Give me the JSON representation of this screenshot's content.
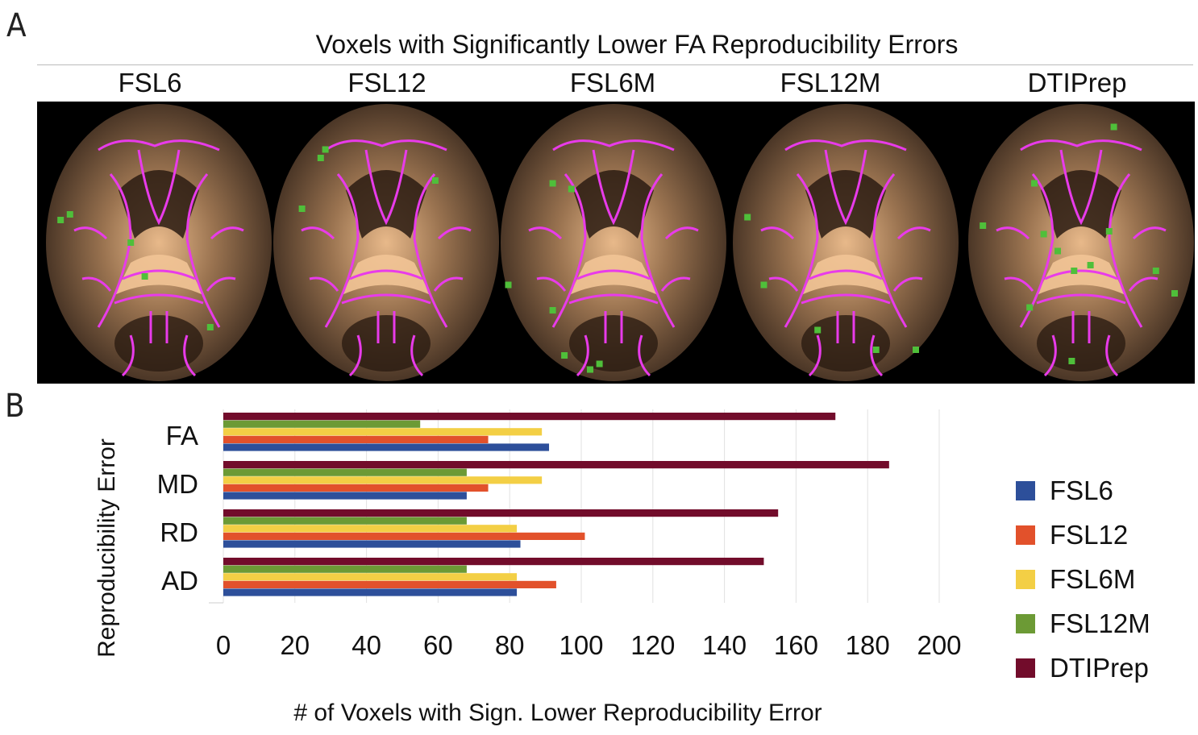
{
  "panel_a": {
    "label": "A",
    "title": "Voxels with Significantly Lower FA Reproducibility Errors",
    "columns": [
      "FSL6",
      "FSL12",
      "FSL6M",
      "FSL12M",
      "DTIPrep"
    ],
    "green_spots": [
      [
        [
          0.08,
          0.42
        ],
        [
          0.38,
          0.5
        ],
        [
          0.44,
          0.62
        ],
        [
          0.72,
          0.8
        ],
        [
          0.12,
          0.4
        ]
      ],
      [
        [
          0.24,
          0.17
        ],
        [
          0.14,
          0.38
        ],
        [
          0.71,
          0.28
        ],
        [
          0.22,
          0.2
        ]
      ],
      [
        [
          0.24,
          0.29
        ],
        [
          0.32,
          0.31
        ],
        [
          0.05,
          0.65
        ],
        [
          0.24,
          0.74
        ],
        [
          0.29,
          0.9
        ],
        [
          0.4,
          0.95
        ],
        [
          0.44,
          0.93
        ]
      ],
      [
        [
          0.08,
          0.41
        ],
        [
          0.15,
          0.65
        ],
        [
          0.38,
          0.81
        ],
        [
          0.63,
          0.88
        ],
        [
          0.8,
          0.88
        ]
      ],
      [
        [
          0.64,
          0.09
        ],
        [
          0.3,
          0.29
        ],
        [
          0.08,
          0.44
        ],
        [
          0.34,
          0.47
        ],
        [
          0.4,
          0.53
        ],
        [
          0.62,
          0.46
        ],
        [
          0.47,
          0.6
        ],
        [
          0.54,
          0.58
        ],
        [
          0.82,
          0.6
        ],
        [
          0.28,
          0.73
        ],
        [
          0.9,
          0.68
        ],
        [
          0.46,
          0.92
        ]
      ]
    ]
  },
  "chart_data": {
    "label": "B",
    "type": "bar",
    "orientation": "horizontal",
    "categories": [
      "FA",
      "MD",
      "RD",
      "AD"
    ],
    "series": [
      {
        "name": "FSL6",
        "color": "#2d4f9a",
        "values": [
          91,
          68,
          83,
          82
        ]
      },
      {
        "name": "FSL12",
        "color": "#e2512b",
        "values": [
          74,
          74,
          101,
          93
        ]
      },
      {
        "name": "FSL6M",
        "color": "#f3cf45",
        "values": [
          89,
          89,
          82,
          82
        ]
      },
      {
        "name": "FSL12M",
        "color": "#6c9a35",
        "values": [
          55,
          68,
          68,
          68
        ]
      },
      {
        "name": "DTIPrep",
        "color": "#720c2b",
        "values": [
          171,
          186,
          155,
          151
        ]
      }
    ],
    "xlabel": "# of Voxels with Sign. Lower Reproducibility Error",
    "ylabel": "Reproducibility Error",
    "xlim": [
      0,
      200
    ],
    "xticks": [
      "0",
      "20",
      "40",
      "60",
      "80",
      "100",
      "120",
      "140",
      "160",
      "180",
      "200"
    ],
    "grid": true,
    "legend_position": "right"
  }
}
